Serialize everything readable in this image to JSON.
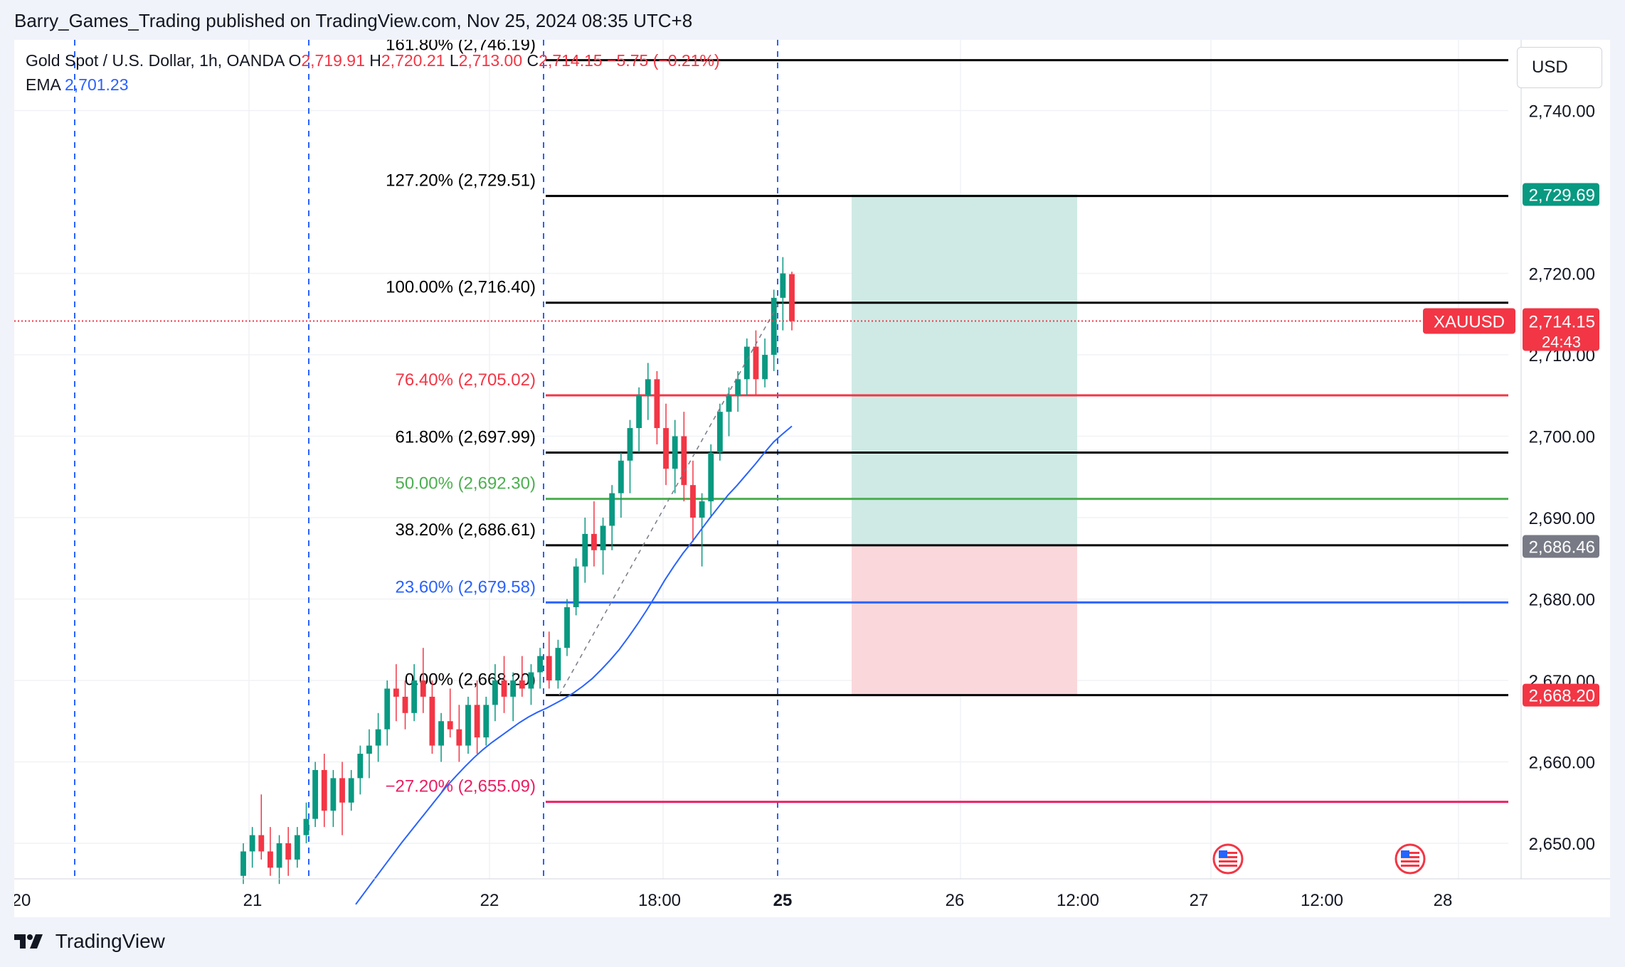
{
  "header": {
    "published": "Barry_Games_Trading published on TradingView.com, Nov 25, 2024 08:35 UTC+8"
  },
  "footer": {
    "brand": "TradingView",
    "logo_icon": "tradingview-logo-icon"
  },
  "legend": {
    "symbol": "Gold Spot / U.S. Dollar, 1h, OANDA",
    "o_label": "O",
    "o_value": "2,719.91",
    "h_label": "H",
    "h_value": "2,720.21",
    "l_label": "L",
    "l_value": "2,713.00",
    "c_label": "C",
    "c_value": "2,714.15",
    "change": "−5.75 (−0.21%)",
    "ema_label": "EMA",
    "ema_value": "2,701.23"
  },
  "currency": "USD",
  "colors": {
    "up": "#089981",
    "down": "#f23645",
    "ema": "#2962ff",
    "profit": "#cfeae5",
    "loss": "#fad7db",
    "tp_tag": "#089981",
    "entry_tag": "#787b86",
    "sl_tag": "#f23645"
  },
  "chart_data": {
    "type": "candlestick",
    "symbol": "XAUUSD",
    "timeframe": "1h",
    "ylim": [
      2644,
      2750
    ],
    "y_ticks": [
      2650,
      2660,
      2670,
      2680,
      2690,
      2700,
      2710,
      2720,
      2740
    ],
    "y_tick_labels": [
      "2,650.00",
      "2,660.00",
      "2,670.00",
      "2,680.00",
      "2,690.00",
      "2,700.00",
      "2,710.00",
      "2,720.00",
      "2,740.00"
    ],
    "x_ticks": [
      {
        "label": "20",
        "bold": false
      },
      {
        "label": "21",
        "bold": false
      },
      {
        "label": "22",
        "bold": false
      },
      {
        "label": "18:00",
        "bold": false
      },
      {
        "label": "25",
        "bold": true
      },
      {
        "label": "26",
        "bold": false
      },
      {
        "label": "12:00",
        "bold": false
      },
      {
        "label": "27",
        "bold": false
      },
      {
        "label": "12:00",
        "bold": false
      },
      {
        "label": "28",
        "bold": false
      }
    ],
    "fibonacci": [
      {
        "label": "161.80% (2,746.19)",
        "price": 2746.19,
        "color": "#000000"
      },
      {
        "label": "127.20% (2,729.51)",
        "price": 2729.51,
        "color": "#000000"
      },
      {
        "label": "100.00% (2,716.40)",
        "price": 2716.4,
        "color": "#000000"
      },
      {
        "label": "76.40% (2,705.02)",
        "price": 2705.02,
        "color": "#f23645"
      },
      {
        "label": "61.80% (2,697.99)",
        "price": 2697.99,
        "color": "#000000"
      },
      {
        "label": "50.00% (2,692.30)",
        "price": 2692.3,
        "color": "#4caf50"
      },
      {
        "label": "38.20% (2,686.61)",
        "price": 2686.61,
        "color": "#000000"
      },
      {
        "label": "23.60% (2,679.58)",
        "price": 2679.58,
        "color": "#2962ff"
      },
      {
        "label": "0.00% (2,668.20)",
        "price": 2668.2,
        "color": "#000000"
      },
      {
        "label": "−27.20% (2,655.09)",
        "price": 2655.09,
        "color": "#e91e63"
      }
    ],
    "position": {
      "take_profit": 2729.69,
      "entry": 2686.46,
      "stop_loss": 2668.2
    },
    "price_tags": [
      {
        "label": "2,729.69",
        "price": 2729.69,
        "color": "#089981"
      },
      {
        "label": "2,686.46",
        "price": 2686.46,
        "color": "#787b86"
      },
      {
        "label": "2,668.20",
        "price": 2668.2,
        "color": "#f23645"
      }
    ],
    "last_price": {
      "symbol": "XAUUSD",
      "value": "2,714.15",
      "price": 2714.15,
      "countdown": "24:43"
    },
    "candles": [
      [
        2646,
        2650,
        2645,
        2649
      ],
      [
        2649,
        2652,
        2647,
        2651
      ],
      [
        2651,
        2656,
        2648,
        2649
      ],
      [
        2649,
        2652,
        2646,
        2647
      ],
      [
        2647,
        2651,
        2645,
        2650
      ],
      [
        2650,
        2652,
        2646,
        2648
      ],
      [
        2648,
        2652,
        2647,
        2651
      ],
      [
        2651,
        2655,
        2650,
        2653
      ],
      [
        2653,
        2660,
        2652,
        2659
      ],
      [
        2659,
        2661,
        2652,
        2654
      ],
      [
        2654,
        2659,
        2652,
        2658
      ],
      [
        2658,
        2660,
        2651,
        2655
      ],
      [
        2655,
        2659,
        2654,
        2658
      ],
      [
        2658,
        2662,
        2656,
        2661
      ],
      [
        2661,
        2664,
        2658,
        2662
      ],
      [
        2662,
        2666,
        2660,
        2664
      ],
      [
        2664,
        2670,
        2662,
        2669
      ],
      [
        2669,
        2672,
        2665,
        2668
      ],
      [
        2668,
        2670,
        2664,
        2666
      ],
      [
        2666,
        2672,
        2665,
        2670
      ],
      [
        2670,
        2674,
        2666,
        2668
      ],
      [
        2668,
        2670,
        2661,
        2662
      ],
      [
        2662,
        2666,
        2660,
        2665
      ],
      [
        2665,
        2669,
        2663,
        2664
      ],
      [
        2664,
        2667,
        2660,
        2662
      ],
      [
        2662,
        2668,
        2661,
        2667
      ],
      [
        2667,
        2670,
        2661,
        2663
      ],
      [
        2663,
        2668,
        2662,
        2667
      ],
      [
        2667,
        2672,
        2665,
        2670
      ],
      [
        2670,
        2673,
        2666,
        2668
      ],
      [
        2668,
        2671,
        2665,
        2670
      ],
      [
        2670,
        2673,
        2668,
        2669
      ],
      [
        2669,
        2672,
        2667,
        2671
      ],
      [
        2671,
        2674,
        2669,
        2673
      ],
      [
        2673,
        2676,
        2669,
        2670
      ],
      [
        2670,
        2675,
        2669,
        2674
      ],
      [
        2674,
        2680,
        2673,
        2679
      ],
      [
        2679,
        2685,
        2678,
        2684
      ],
      [
        2684,
        2690,
        2682,
        2688
      ],
      [
        2688,
        2692,
        2684,
        2686
      ],
      [
        2686,
        2690,
        2683,
        2689
      ],
      [
        2689,
        2694,
        2686,
        2693
      ],
      [
        2693,
        2698,
        2690,
        2697
      ],
      [
        2697,
        2702,
        2693,
        2701
      ],
      [
        2701,
        2706,
        2698,
        2705
      ],
      [
        2705,
        2709,
        2702,
        2707
      ],
      [
        2707,
        2708,
        2699,
        2701
      ],
      [
        2701,
        2704,
        2694,
        2696
      ],
      [
        2696,
        2702,
        2693,
        2700
      ],
      [
        2700,
        2703,
        2692,
        2694
      ],
      [
        2694,
        2697,
        2687,
        2690
      ],
      [
        2690,
        2693,
        2684,
        2692
      ],
      [
        2692,
        2699,
        2690,
        2698
      ],
      [
        2698,
        2704,
        2697,
        2703
      ],
      [
        2703,
        2706,
        2700,
        2705
      ],
      [
        2705,
        2708,
        2703,
        2707
      ],
      [
        2707,
        2712,
        2705,
        2711
      ],
      [
        2711,
        2713,
        2705,
        2707
      ],
      [
        2707,
        2712,
        2706,
        2710
      ],
      [
        2710,
        2718,
        2708,
        2717
      ],
      [
        2717,
        2722,
        2713,
        2720
      ],
      [
        2719.91,
        2720.21,
        2713.0,
        2714.15
      ]
    ],
    "ema": [
      2642.5,
      2644.0,
      2645.5,
      2647.0,
      2648.5,
      2650.0,
      2651.4,
      2652.8,
      2654.2,
      2655.6,
      2657.0,
      2658.2,
      2659.4,
      2660.5,
      2661.5,
      2662.4,
      2663.2,
      2664.0,
      2664.8,
      2665.5,
      2666.1,
      2666.6,
      2667.2,
      2667.8,
      2668.5,
      2669.3,
      2670.2,
      2671.3,
      2672.5,
      2673.8,
      2675.3,
      2676.9,
      2678.6,
      2680.4,
      2682.3,
      2684.0,
      2685.6,
      2687.0,
      2688.5,
      2690.0,
      2691.4,
      2692.8,
      2694.0,
      2695.3,
      2696.6,
      2698.0,
      2699.3,
      2700.3,
      2701.23
    ]
  }
}
